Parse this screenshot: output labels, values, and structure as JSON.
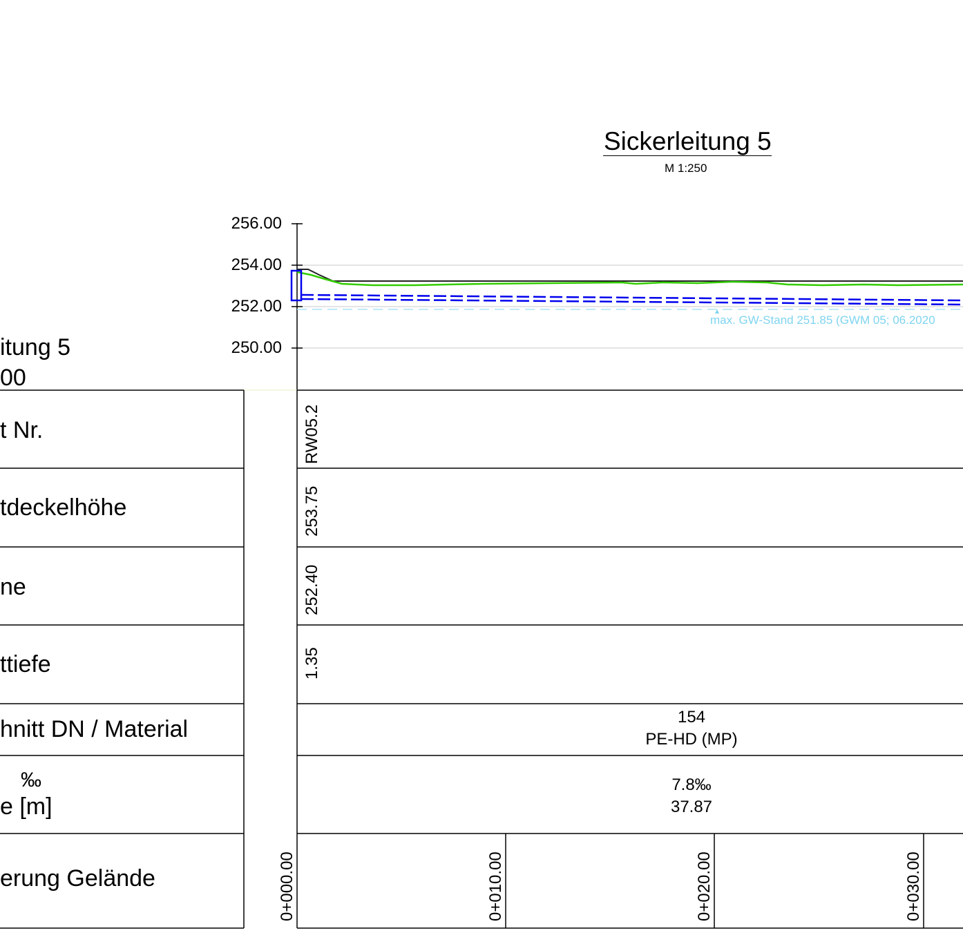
{
  "title": "Sickerleitung 5",
  "scale": "M 1:250",
  "left_header": {
    "line1": "itung 5",
    "line2": "00"
  },
  "y_axis": {
    "ticks": [
      "256.00",
      "254.00",
      "252.00",
      "250.00"
    ]
  },
  "gw_label": "max. GW-Stand 251.85 (GWM 05; 06.2020",
  "rows": {
    "schacht_nr": {
      "label": "t Nr.",
      "value": "RW05.2"
    },
    "deckelhoehe": {
      "label": "tdeckelhöhe",
      "value": "253.75"
    },
    "sohle": {
      "label": "ne",
      "value": "252.40"
    },
    "tiefe": {
      "label": "ttiefe",
      "value": "1.35"
    },
    "material": {
      "label": "hnitt DN / Material",
      "value1": "154",
      "value2": "PE-HD (MP)"
    },
    "gefaelle": {
      "label1": "‰",
      "label2": "e  [m]",
      "value1": "7.8‰",
      "value2": "37.87"
    },
    "stationierung": {
      "label": "erung Gelände",
      "stations": [
        "0+000.00",
        "0+010.00",
        "0+020.00",
        "0+030.00"
      ]
    }
  },
  "colors": {
    "terrain": "#000000",
    "ground_green": "#33cc00",
    "pipe_blue": "#0000ee",
    "groundwater": "#7fd4f0",
    "grid": "#d9d9d9"
  }
}
